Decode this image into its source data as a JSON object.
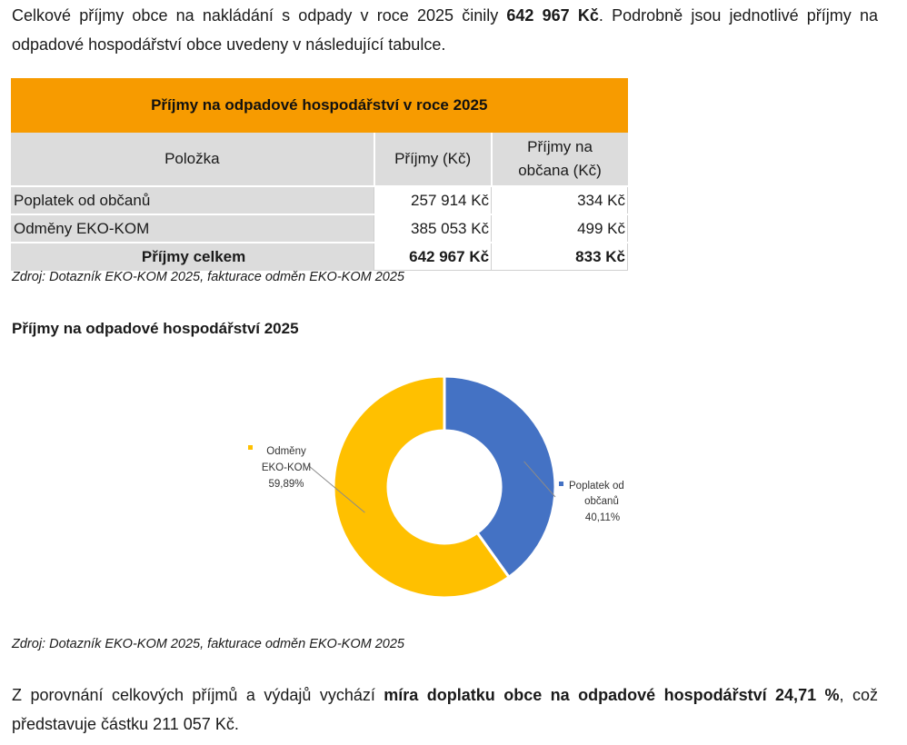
{
  "intro": {
    "text_before": "Celkové příjmy obce na nakládání s odpady v roce 2025 činily ",
    "amount": "642 967 Kč",
    "text_after": ". Podrobně jsou jednotlivé příjmy na odpadové hospodářství obce uvedeny v následující tabulce."
  },
  "table": {
    "title": "Příjmy na odpadové hospodářství v roce 2025",
    "headers": [
      "Položka",
      "Příjmy (Kč)",
      "Příjmy na občana (Kč)"
    ],
    "rows": [
      {
        "label": "Poplatek od občanů",
        "income": "257 914 Kč",
        "per_capita": "334 Kč"
      },
      {
        "label": "Odměny EKO-KOM",
        "income": "385 053 Kč",
        "per_capita": "499 Kč"
      }
    ],
    "total": {
      "label": "Příjmy celkem",
      "income": "642 967 Kč",
      "per_capita": "833 Kč"
    },
    "title_color": "#f79b00"
  },
  "source_1": "Zdroj: Dotazník EKO-KOM 2025, fakturace odměn EKO-KOM 2025",
  "chart_title": "Příjmy na odpadové hospodářství 2025",
  "chart_data": {
    "type": "pie",
    "donut": true,
    "slices": [
      {
        "label": "Poplatek od občanů",
        "value": 40.11,
        "label_text": "40,11%",
        "color": "#4472c4"
      },
      {
        "label": "Odměny EKO-KOM",
        "value": 59.89,
        "label_text": "59,89%",
        "color": "#ffc000"
      }
    ]
  },
  "source_2": "Zdroj: Dotazník EKO-KOM 2025, fakturace odměn EKO-KOM 2025",
  "conclusion": {
    "text_before": "Z porovnání celkových příjmů a výdajů vychází ",
    "bold": "míra doplatku obce na odpadové hospodářství 24,71 %",
    "text_after": ", což představuje částku 211 057 Kč."
  }
}
